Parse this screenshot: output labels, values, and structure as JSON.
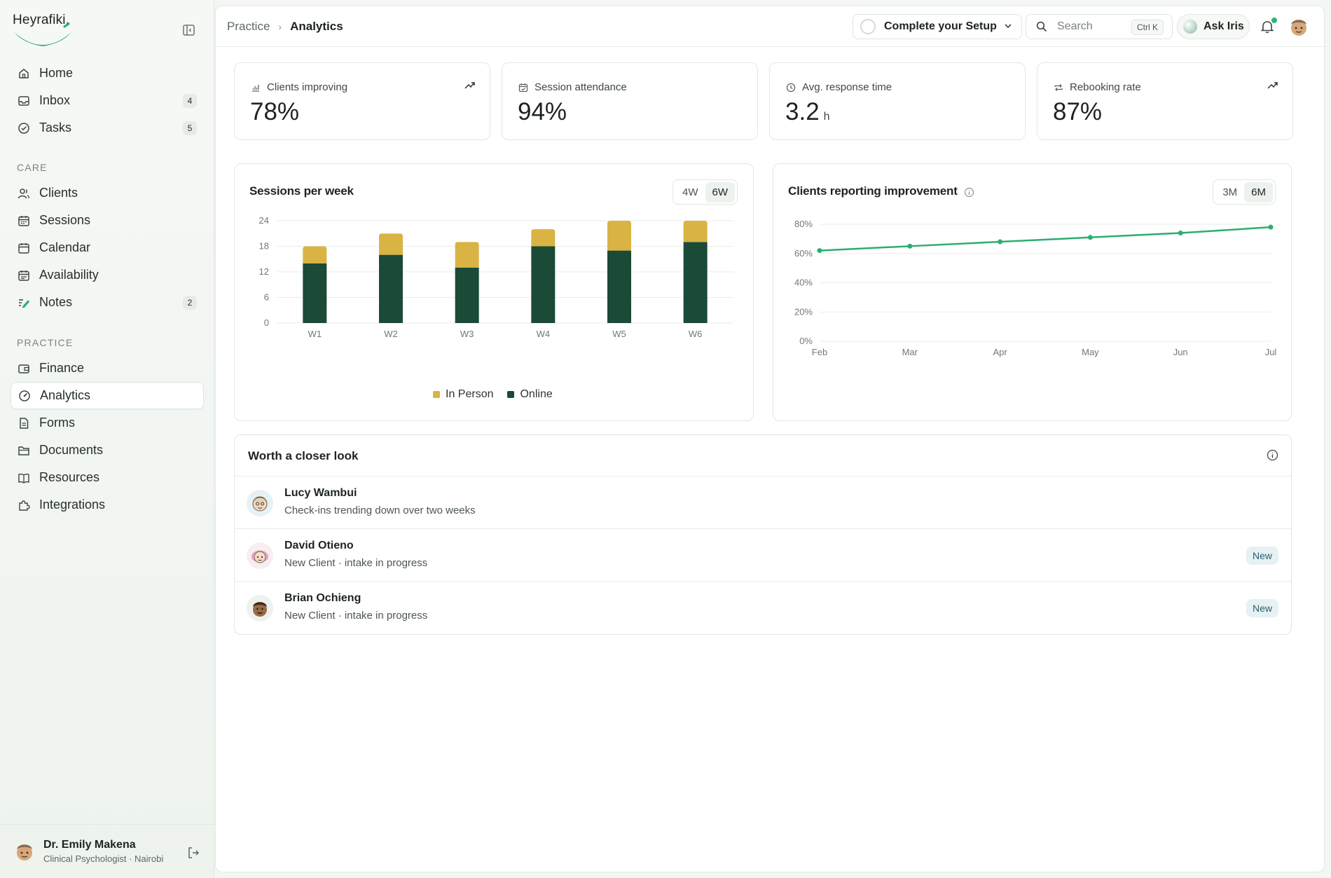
{
  "brand": {
    "name": "Heyrafiki."
  },
  "sidebar": {
    "main_items": [
      {
        "label": "Home",
        "icon": "home-icon"
      },
      {
        "label": "Inbox",
        "icon": "inbox-icon",
        "badge": "4"
      },
      {
        "label": "Tasks",
        "icon": "check-circle-icon",
        "badge": "5"
      }
    ],
    "care_label": "CARE",
    "care_items": [
      {
        "label": "Clients",
        "icon": "users-icon"
      },
      {
        "label": "Sessions",
        "icon": "calendar-icon"
      },
      {
        "label": "Calendar",
        "icon": "calendar-icon"
      },
      {
        "label": "Availability",
        "icon": "calendar-icon"
      },
      {
        "label": "Notes",
        "icon": "pen-lines-icon",
        "badge": "2"
      }
    ],
    "practice_label": "PRACTICE",
    "practice_items": [
      {
        "label": "Finance",
        "icon": "wallet-icon"
      },
      {
        "label": "Analytics",
        "icon": "gauge-icon",
        "active": true
      },
      {
        "label": "Forms",
        "icon": "file-icon"
      },
      {
        "label": "Documents",
        "icon": "folder-icon"
      },
      {
        "label": "Resources",
        "icon": "book-icon"
      },
      {
        "label": "Integrations",
        "icon": "puzzle-icon"
      }
    ],
    "profile": {
      "name": "Dr. Emily Makena",
      "role": "Clinical Psychologist · Nairobi"
    }
  },
  "header": {
    "breadcrumb": [
      "Practice",
      "Analytics"
    ],
    "setup_label": "Complete your Setup",
    "search_placeholder": "Search",
    "search_shortcut": "Ctrl K",
    "ask_label": "Ask Iris",
    "notification_dot_color": "#2bb673"
  },
  "stats": [
    {
      "label": "Clients improving",
      "value": "78%",
      "unit": "",
      "icon": "bar-chart-icon",
      "trend": true
    },
    {
      "label": "Session attendance",
      "value": "94%",
      "unit": "",
      "icon": "calendar-check-icon",
      "trend": false
    },
    {
      "label": "Avg. response time",
      "value": "3.2",
      "unit": "h",
      "icon": "clock-icon",
      "trend": false
    },
    {
      "label": "Rebooking rate",
      "value": "87%",
      "unit": "",
      "icon": "repeat-icon",
      "trend": true
    }
  ],
  "colors": {
    "online": "#1b4a37",
    "in_person": "#d9b343",
    "line": "#2bae6f",
    "grid": "#e9edea"
  },
  "sessions_card": {
    "title": "Sessions per week",
    "ranges": [
      "4W",
      "6W"
    ],
    "active_range": "6W",
    "legend": [
      "In Person",
      "Online"
    ]
  },
  "improvement_card": {
    "title": "Clients reporting improvement",
    "ranges": [
      "3M",
      "6M"
    ],
    "active_range": "6M"
  },
  "chart_data": [
    {
      "type": "bar",
      "stacked": true,
      "title": "Sessions per week",
      "categories": [
        "W1",
        "W2",
        "W3",
        "W4",
        "W5",
        "W6"
      ],
      "series": [
        {
          "name": "Online",
          "values": [
            14,
            16,
            13,
            18,
            17,
            19
          ]
        },
        {
          "name": "In Person",
          "values": [
            4,
            5,
            6,
            4,
            7,
            5
          ]
        }
      ],
      "yticks": [
        "0",
        "6",
        "12",
        "18",
        "24"
      ],
      "ylim": [
        0,
        24
      ],
      "grid": true,
      "legend": "bottom"
    },
    {
      "type": "line",
      "title": "Clients reporting improvement",
      "x": [
        "Feb",
        "Mar",
        "Apr",
        "May",
        "Jun",
        "Jul"
      ],
      "values": [
        62,
        65,
        68,
        71,
        74,
        78
      ],
      "yticks": [
        "0%",
        "20%",
        "40%",
        "60%",
        "80%"
      ],
      "ylim": [
        0,
        80
      ],
      "grid": true
    }
  ],
  "closer_look": {
    "title": "Worth a closer look",
    "rows": [
      {
        "name": "Lucy Wambui",
        "note": "Check-ins trending down over two weeks",
        "tag": ""
      },
      {
        "name": "David Otieno",
        "note": "New Client · intake in progress",
        "tag": "New"
      },
      {
        "name": "Brian Ochieng",
        "note": "New Client · intake in progress",
        "tag": "New"
      }
    ]
  }
}
